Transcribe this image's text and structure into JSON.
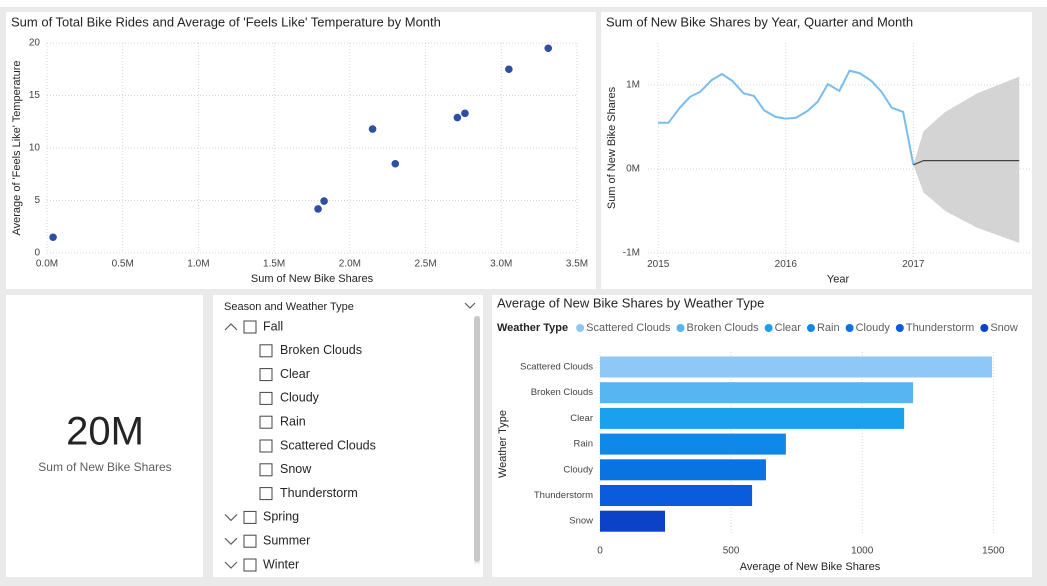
{
  "chart_data": [
    {
      "type": "scatter",
      "title": "Sum of Total Bike Rides and Average of 'Feels Like' Temperature by Month",
      "x_label": "Sum of New Bike Shares",
      "y_label": "Average of 'Feels Like' Temperature",
      "x": [
        0.04,
        1.79,
        1.83,
        2.15,
        2.3,
        2.71,
        2.76,
        3.05,
        3.31
      ],
      "y": [
        1.5,
        4.2,
        4.95,
        11.8,
        8.5,
        12.9,
        13.3,
        17.5,
        19.5
      ],
      "color": "#2f4ea5",
      "xlim": [
        0,
        3.5
      ],
      "ylim": [
        0,
        20
      ],
      "xticks": [
        {
          "value": 0,
          "label": "0.0M"
        },
        {
          "value": 0.5,
          "label": "0.5M"
        },
        {
          "value": 1,
          "label": "1.0M"
        },
        {
          "value": 1.5,
          "label": "1.5M"
        },
        {
          "value": 2,
          "label": "2.0M"
        },
        {
          "value": 2.5,
          "label": "2.5M"
        },
        {
          "value": 3,
          "label": "3.0M"
        },
        {
          "value": 3.5,
          "label": "3.5M"
        }
      ],
      "yticks": [
        0,
        5,
        10,
        15,
        20
      ],
      "grid": true
    },
    {
      "type": "line",
      "title": "Sum of New Bike Shares by Year, Quarter and Month",
      "x_label": "Year",
      "y_label": "Sum of New Bike Shares",
      "x": [
        2015,
        2015.08,
        2015.17,
        2015.25,
        2015.33,
        2015.42,
        2015.5,
        2015.58,
        2015.67,
        2015.75,
        2015.83,
        2015.92,
        2016,
        2016.08,
        2016.17,
        2016.25,
        2016.33,
        2016.42,
        2016.5,
        2016.58,
        2016.67,
        2016.75,
        2016.83,
        2016.92,
        2017
      ],
      "series": [
        {
          "color": "#79bdef",
          "values": [
            0.55,
            0.55,
            0.73,
            0.86,
            0.92,
            1.06,
            1.13,
            1.05,
            0.9,
            0.87,
            0.7,
            0.62,
            0.6,
            0.61,
            0.69,
            0.8,
            1.01,
            0.93,
            1.17,
            1.14,
            1.05,
            0.92,
            0.73,
            0.68,
            0.05
          ]
        }
      ],
      "forecast": {
        "x": [
          2017,
          2017.08,
          2017.25,
          2017.5,
          2017.83
        ],
        "values": [
          0.05,
          0.1,
          0.1,
          0.1,
          0.1
        ],
        "upper": [
          0.05,
          0.45,
          0.68,
          0.9,
          1.1
        ],
        "lower": [
          0.05,
          -0.28,
          -0.5,
          -0.7,
          -0.88
        ],
        "color": "#444444",
        "band_color": "#d4d4d4"
      },
      "xlim": [
        2014.92,
        2017.93
      ],
      "ylim": [
        -1.1,
        1.5
      ],
      "xticks": [
        2015,
        2016,
        2017
      ],
      "yticks": [
        {
          "value": 1,
          "label": "1M"
        },
        {
          "value": 0,
          "label": "0M"
        },
        {
          "value": -1,
          "label": "-1M"
        }
      ],
      "grid": true
    },
    {
      "type": "hbar",
      "title": "Average of New Bike Shares by Weather Type",
      "legend_title": "Weather Type",
      "x_label": "Average of New Bike Shares",
      "y_label": "Weather Type",
      "categories": [
        "Scattered Clouds",
        "Broken Clouds",
        "Clear",
        "Rain",
        "Cloudy",
        "Thunderstorm",
        "Snow"
      ],
      "values": [
        1495,
        1194,
        1160,
        709,
        633,
        580,
        248
      ],
      "colors": [
        "#8dc8f7",
        "#57b5f1",
        "#19a1ee",
        "#0f88e8",
        "#0a73e2",
        "#0a5cdc",
        "#0b42c8"
      ],
      "xlim": [
        0,
        1550
      ],
      "xticks": [
        0,
        500,
        1000,
        1500
      ],
      "grid": true
    }
  ],
  "card": {
    "value": "20M",
    "label": "Sum of New Bike Shares"
  },
  "slicer": {
    "title": "Season and Weather Type",
    "groups": [
      {
        "label": "Fall",
        "expanded": true,
        "items": [
          "Broken Clouds",
          "Clear",
          "Cloudy",
          "Rain",
          "Scattered Clouds",
          "Snow",
          "Thunderstorm"
        ]
      },
      {
        "label": "Spring",
        "expanded": false
      },
      {
        "label": "Summer",
        "expanded": false
      },
      {
        "label": "Winter",
        "expanded": false
      }
    ]
  }
}
